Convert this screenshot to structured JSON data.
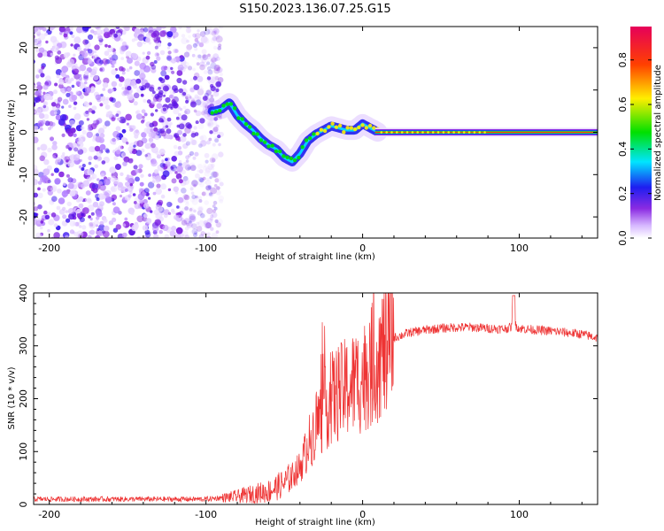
{
  "title": "S150.2023.136.07.25.G15",
  "chart_data": [
    {
      "type": "heatmap",
      "name": "spectrogram",
      "xlabel": "Height of straight line (km)",
      "ylabel": "Frequency (Hz)",
      "xlim": [
        -210,
        150
      ],
      "ylim": [
        -25,
        25
      ],
      "xticks": [
        -200,
        -100,
        0,
        100
      ],
      "yticks": [
        -20,
        -10,
        0,
        10,
        20
      ],
      "ridge": {
        "x": [
          -95,
          -90,
          -85,
          -80,
          -75,
          -70,
          -65,
          -60,
          -55,
          -50,
          -45,
          -40,
          -35,
          -30,
          -25,
          -20,
          -15,
          -10,
          -5,
          0,
          5,
          10,
          20,
          40,
          60,
          80,
          150
        ],
        "y": [
          5,
          5.5,
          7,
          4,
          2,
          0.5,
          -1.5,
          -3,
          -4,
          -6,
          -7,
          -5,
          -2,
          -0.5,
          0.5,
          1.5,
          1,
          0.5,
          0.5,
          2,
          1,
          0,
          0,
          0,
          0,
          0,
          0
        ]
      },
      "colorbar": {
        "label": "Normalized spectral amplitude",
        "min": 0.0,
        "max": 0.95,
        "ticks": [
          "0.0",
          "0.2",
          "0.4",
          "0.6",
          "0.8"
        ],
        "tick_values": [
          0.0,
          0.2,
          0.4,
          0.6,
          0.8
        ],
        "colors": [
          "#ffffff",
          "#d6b7ff",
          "#8a2be2",
          "#1e1ef0",
          "#00e5ff",
          "#00e000",
          "#ffee00",
          "#ff4000",
          "#e6005a"
        ]
      }
    },
    {
      "type": "line",
      "name": "snr",
      "xlabel": "Height of straight line (km)",
      "ylabel": "SNR (10 * v/v)",
      "xlim": [
        -210,
        150
      ],
      "ylim": [
        0,
        400
      ],
      "xticks": [
        -200,
        -100,
        0,
        100
      ],
      "yticks": [
        0,
        100,
        200,
        300,
        400
      ],
      "color": "#ee3333",
      "trend": {
        "x": [
          -210,
          -100,
          -80,
          -60,
          -50,
          -40,
          -35,
          -30,
          -25,
          -20,
          -10,
          0,
          10,
          20,
          30,
          40,
          50,
          60,
          70,
          80,
          90,
          95,
          96,
          97,
          100,
          110,
          120,
          130,
          140,
          150
        ],
        "y": [
          10,
          10,
          15,
          25,
          40,
          70,
          110,
          150,
          175,
          200,
          220,
          240,
          280,
          315,
          325,
          330,
          333,
          335,
          335,
          333,
          332,
          335,
          390,
          340,
          333,
          330,
          328,
          325,
          322,
          315
        ]
      }
    }
  ]
}
